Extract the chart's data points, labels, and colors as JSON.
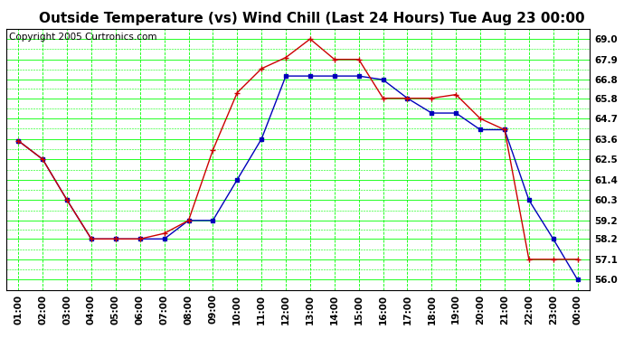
{
  "title": "Outside Temperature (vs) Wind Chill (Last 24 Hours) Tue Aug 23 00:00",
  "copyright": "Copyright 2005 Curtronics.com",
  "x_labels": [
    "01:00",
    "02:00",
    "03:00",
    "04:00",
    "05:00",
    "06:00",
    "07:00",
    "08:00",
    "09:00",
    "10:00",
    "11:00",
    "12:00",
    "13:00",
    "14:00",
    "15:00",
    "16:00",
    "17:00",
    "18:00",
    "19:00",
    "20:00",
    "21:00",
    "22:00",
    "23:00",
    "00:00"
  ],
  "temp_blue": [
    63.5,
    62.5,
    60.3,
    58.2,
    58.2,
    58.2,
    58.2,
    59.2,
    59.2,
    61.4,
    63.6,
    67.0,
    67.0,
    67.0,
    67.0,
    66.8,
    65.8,
    65.0,
    65.0,
    64.1,
    64.1,
    60.3,
    58.2,
    56.0
  ],
  "windchill_red": [
    63.5,
    62.5,
    60.3,
    58.2,
    58.2,
    58.2,
    58.5,
    59.2,
    63.0,
    66.1,
    67.4,
    68.0,
    69.0,
    67.9,
    67.9,
    65.8,
    65.8,
    65.8,
    66.0,
    64.7,
    64.1,
    57.1,
    57.1,
    57.1
  ],
  "ylim_min": 55.45,
  "ylim_max": 69.55,
  "yticks": [
    56.0,
    57.1,
    58.2,
    59.2,
    60.3,
    61.4,
    62.5,
    63.6,
    64.7,
    65.8,
    66.8,
    67.9,
    69.0
  ],
  "bg_color": "#ffffff",
  "plot_bg_color": "#ffffff",
  "grid_major_color": "#00ff00",
  "grid_minor_color": "#00ff00",
  "blue_line_color": "#0000bb",
  "red_line_color": "#cc0000",
  "title_fontsize": 11,
  "copyright_fontsize": 7.5,
  "tick_fontsize": 7.5
}
